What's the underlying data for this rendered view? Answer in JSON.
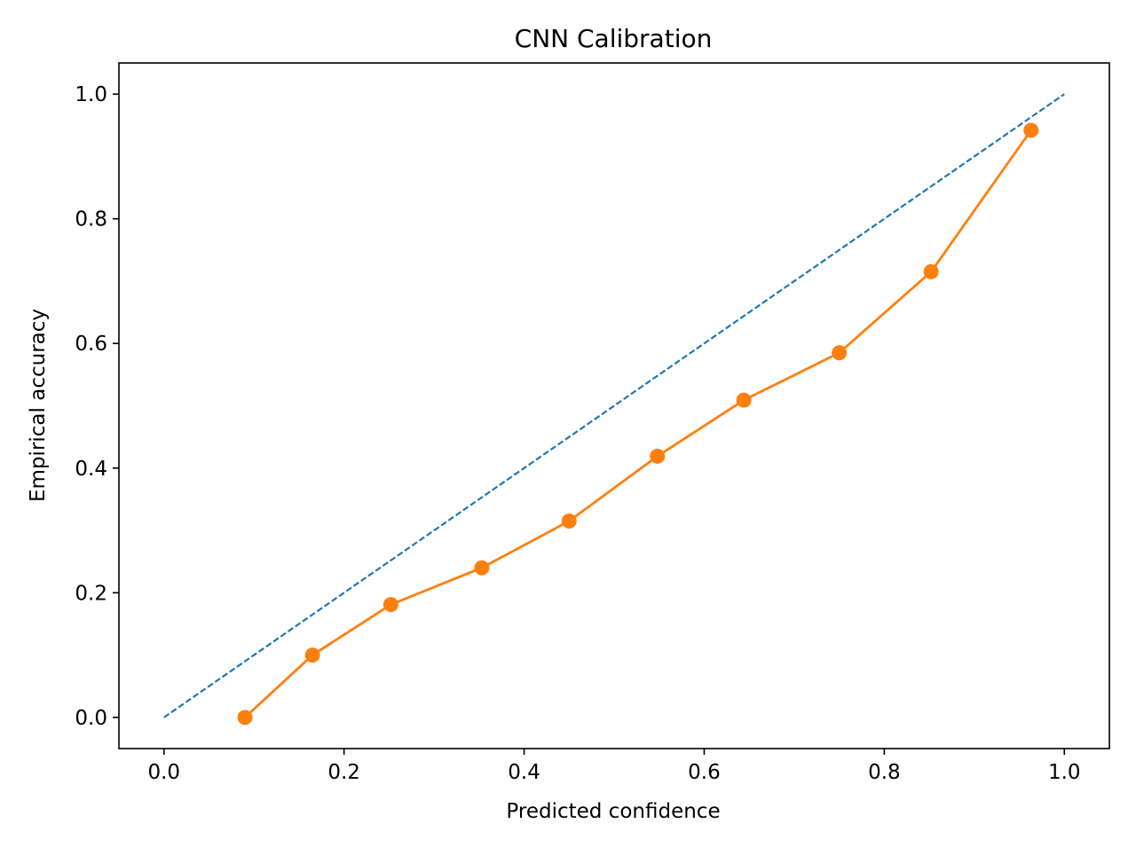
{
  "chart_data": {
    "type": "line",
    "title": "CNN Calibration",
    "xlabel": "Predicted confidence",
    "ylabel": "Empirical accuracy",
    "xlim": [
      -0.05,
      1.05
    ],
    "ylim": [
      -0.05,
      1.05
    ],
    "xticks": [
      0.0,
      0.2,
      0.4,
      0.6,
      0.8,
      1.0
    ],
    "yticks": [
      0.0,
      0.2,
      0.4,
      0.6,
      0.8,
      1.0
    ],
    "xtick_labels": [
      "0.0",
      "0.2",
      "0.4",
      "0.6",
      "0.8",
      "1.0"
    ],
    "ytick_labels": [
      "0.0",
      "0.2",
      "0.4",
      "0.6",
      "0.8",
      "1.0"
    ],
    "grid": false,
    "series": [
      {
        "style": "dashed",
        "color": "#1f77b4",
        "x": [
          0.0,
          1.0
        ],
        "y": [
          0.0,
          1.0
        ]
      },
      {
        "style": "solid-markers",
        "color": "#ff7f0e",
        "x": [
          0.09,
          0.165,
          0.252,
          0.353,
          0.45,
          0.548,
          0.644,
          0.75,
          0.852,
          0.963
        ],
        "y": [
          0.0,
          0.1,
          0.181,
          0.24,
          0.315,
          0.419,
          0.509,
          0.585,
          0.715,
          0.942
        ]
      }
    ]
  }
}
